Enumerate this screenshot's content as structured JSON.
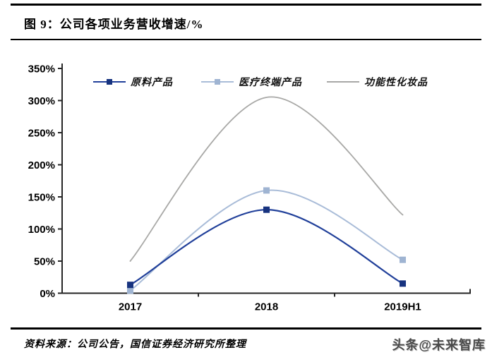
{
  "page": {
    "title": "图 9：公司各项业务营收增速/%",
    "source_note": "资料来源：公司公告，国信证券经济研究所整理",
    "watermark": "头条@未来智库"
  },
  "chart_data": {
    "type": "line",
    "title": "公司各项业务营收增速/%",
    "categories": [
      "2017",
      "2018",
      "2019H1"
    ],
    "series": [
      {
        "name": "原料产品",
        "values": [
          13,
          130,
          15
        ],
        "color": "#21409A",
        "marker_color": "#17337F",
        "marker": "square"
      },
      {
        "name": "医疗终端产品",
        "values": [
          4,
          160,
          52
        ],
        "color": "#A9BCD8",
        "marker_color": "#9FB4D2",
        "marker": "square"
      },
      {
        "name": "功能性化妆品",
        "values": [
          50,
          305,
          122
        ],
        "color": "#A8A8A6",
        "marker": "none"
      }
    ],
    "ylim": [
      0,
      350
    ],
    "ytick_step": 50,
    "yticks": [
      "0%",
      "50%",
      "100%",
      "150%",
      "200%",
      "250%",
      "300%",
      "350%"
    ],
    "legend_position": "top",
    "smooth": true,
    "grid": false,
    "axis_color": "#262626"
  }
}
